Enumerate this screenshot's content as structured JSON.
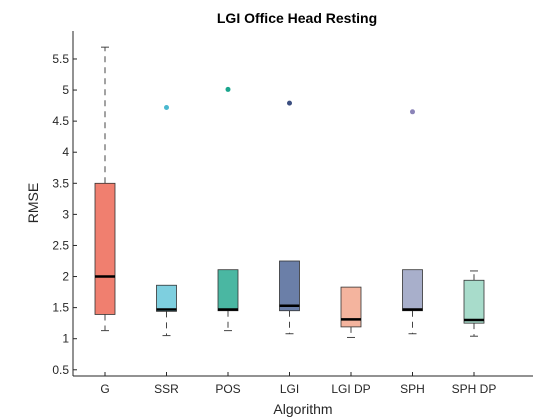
{
  "chart_data": {
    "type": "boxplot",
    "title": "LGI Office Head Resting",
    "xlabel": "Algorithm",
    "ylabel": "RMSE",
    "ylim": [
      0.4,
      5.95
    ],
    "yticks": [
      0.5,
      1,
      1.5,
      2,
      2.5,
      3,
      3.5,
      4,
      4.5,
      5,
      5.5
    ],
    "ytick_labels": [
      "0.5",
      "1",
      "1.5",
      "2",
      "2.5",
      "3",
      "3.5",
      "4",
      "4.5",
      "5",
      "5.5"
    ],
    "grid": false,
    "categories": [
      "G",
      "SSR",
      "POS",
      "LGI",
      "LGI DP",
      "SPH",
      "SPH DP"
    ],
    "boxes": [
      {
        "label": "G",
        "whisker_low": 1.13,
        "q1": 1.39,
        "median": 2.0,
        "q3": 3.5,
        "whisker_high": 5.69,
        "outliers": [],
        "color": "#f07f6f"
      },
      {
        "label": "SSR",
        "whisker_low": 1.05,
        "q1": 1.44,
        "median": 1.47,
        "q3": 1.86,
        "whisker_high": 1.86,
        "outliers": [
          4.72
        ],
        "color": "#7ecfdf"
      },
      {
        "label": "POS",
        "whisker_low": 1.13,
        "q1": 1.45,
        "median": 1.47,
        "q3": 2.11,
        "whisker_high": 2.11,
        "outliers": [
          5.01
        ],
        "color": "#4ab7a2"
      },
      {
        "label": "LGI",
        "whisker_low": 1.08,
        "q1": 1.45,
        "median": 1.53,
        "q3": 2.25,
        "whisker_high": 2.25,
        "outliers": [
          4.79
        ],
        "color": "#6b7fa8"
      },
      {
        "label": "LGI DP",
        "whisker_low": 1.02,
        "q1": 1.19,
        "median": 1.31,
        "q3": 1.83,
        "whisker_high": 1.83,
        "outliers": [],
        "color": "#f4b49e"
      },
      {
        "label": "SPH",
        "whisker_low": 1.08,
        "q1": 1.45,
        "median": 1.47,
        "q3": 2.11,
        "whisker_high": 2.11,
        "outliers": [
          4.65
        ],
        "color": "#a8afcb"
      },
      {
        "label": "SPH DP",
        "whisker_low": 1.04,
        "q1": 1.25,
        "median": 1.3,
        "q3": 1.94,
        "whisker_high": 2.09,
        "outliers": [],
        "color": "#a8dccb"
      }
    ],
    "outlier_colors": [
      "#4ab8cf",
      "#1aa58d",
      "#3c4f80",
      "#8b84b8"
    ]
  }
}
